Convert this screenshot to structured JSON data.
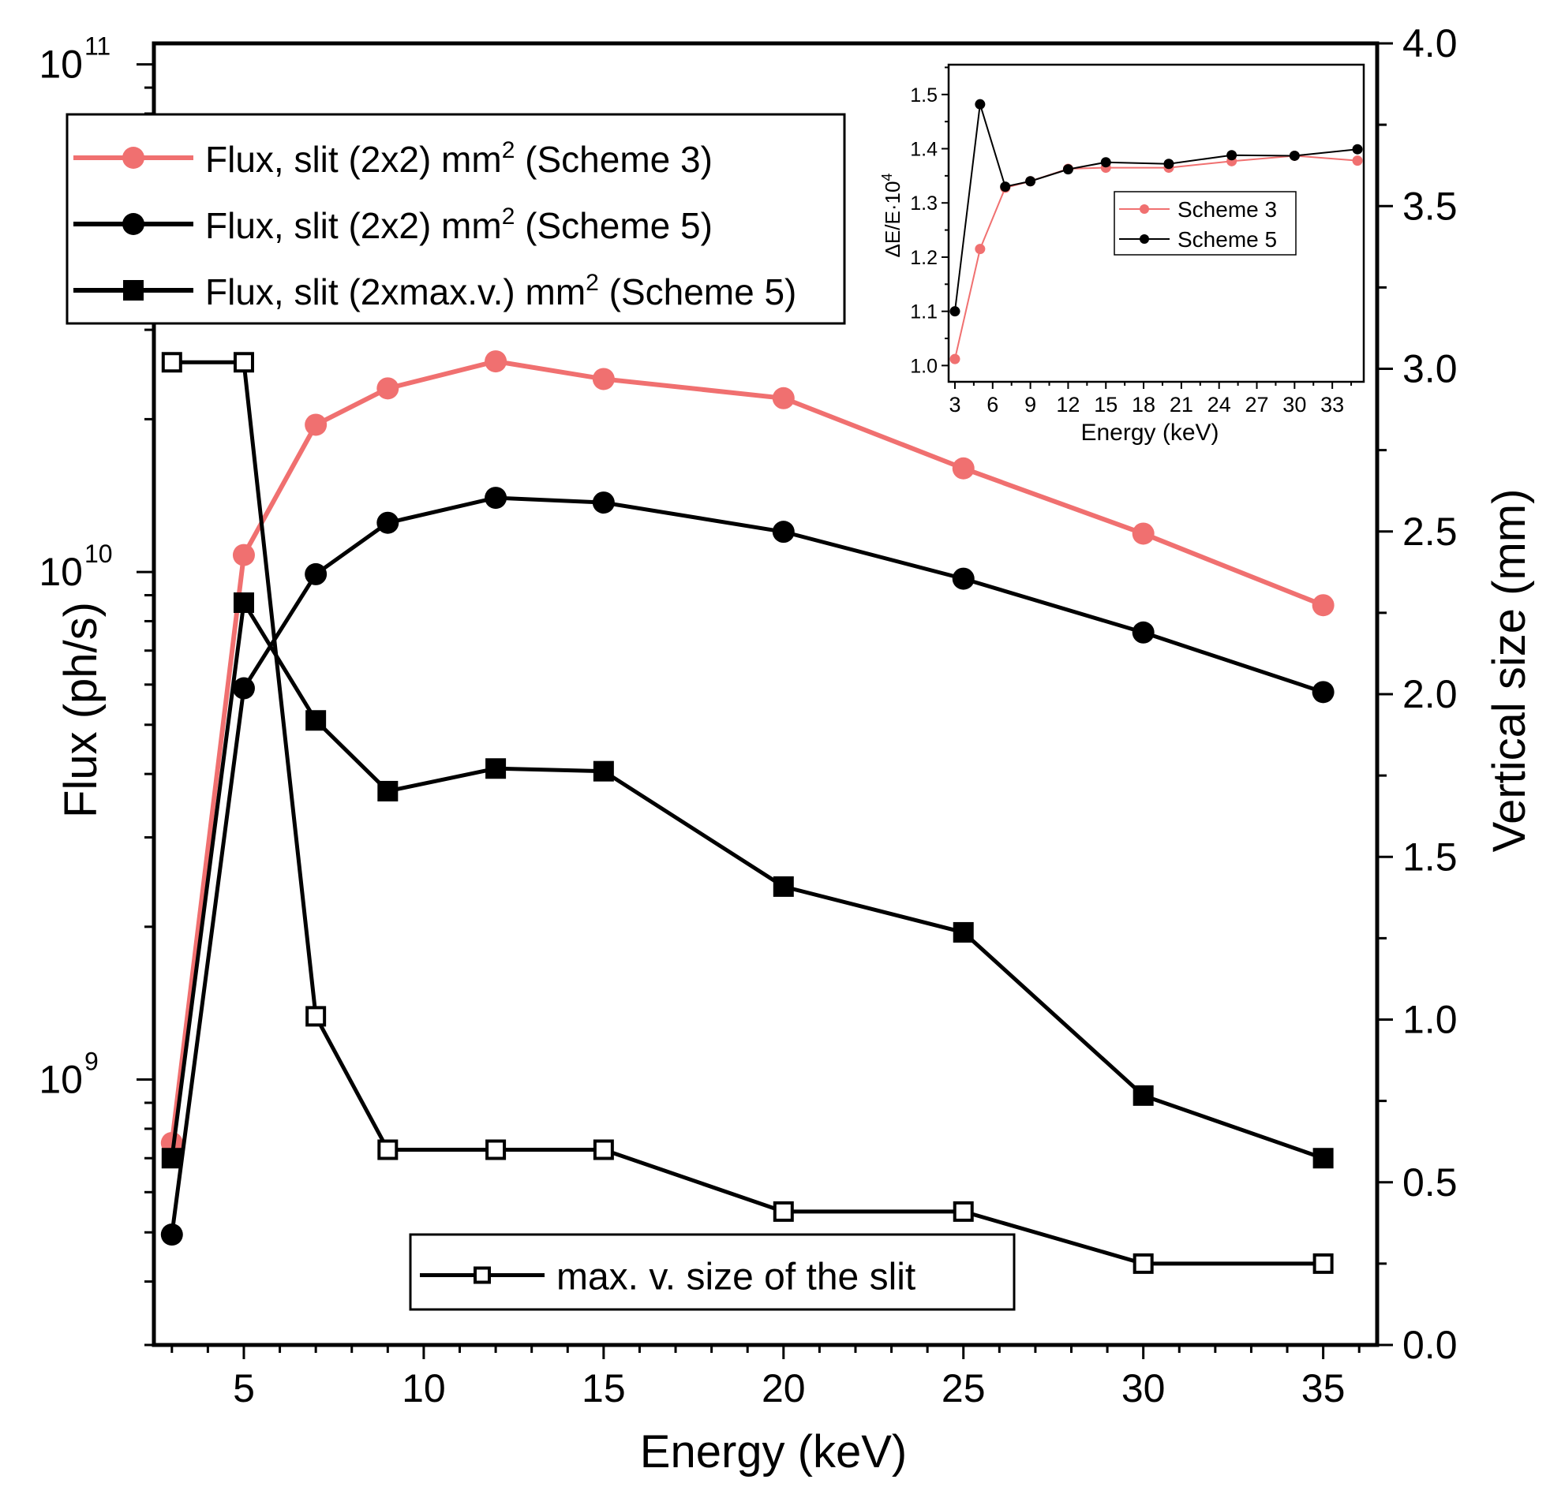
{
  "chart_data": [
    {
      "type": "line",
      "title": "",
      "xlabel": "Energy (keV)",
      "ylabel": "Flux (ph/s)",
      "y2label": "Vertical size (mm)",
      "xlim": [
        2.5,
        36.5
      ],
      "ylim": [
        300000000.0,
        110000000000.0
      ],
      "y2lim": [
        0,
        4
      ],
      "yscale": "log",
      "grid": false,
      "x_ticks": [
        "5",
        "10",
        "15",
        "20",
        "25",
        "30",
        "35"
      ],
      "y_ticks": [
        {
          "base": "10",
          "exp": "9"
        },
        {
          "base": "10",
          "exp": "10"
        },
        {
          "base": "10",
          "exp": "11"
        }
      ],
      "y2_ticks": [
        "0.0",
        "0.5",
        "1.0",
        "1.5",
        "2.0",
        "2.5",
        "3.0",
        "3.5",
        "4.0"
      ],
      "x": [
        3,
        5,
        7,
        9,
        12,
        15,
        20,
        25,
        30,
        35
      ],
      "series": [
        {
          "name": "Flux, slit (2x2) mm",
          "sup": "2",
          "name_tail": " (Scheme 3)",
          "axis": "left",
          "color": "#f07070",
          "marker": "circle-filled",
          "values": [
            750000000.0,
            10800000000.0,
            19500000000.0,
            23000000000.0,
            26000000000.0,
            24000000000.0,
            22000000000.0,
            16000000000.0,
            11900000000.0,
            8600000000.0
          ]
        },
        {
          "name": "Flux, slit (2x2) mm",
          "sup": "2",
          "name_tail": " (Scheme 5)",
          "axis": "left",
          "color": "#000000",
          "marker": "circle-filled",
          "values": [
            495000000.0,
            5900000000.0,
            9900000000.0,
            12500000000.0,
            14000000000.0,
            13700000000.0,
            12000000000.0,
            9700000000.0,
            7600000000.0,
            5800000000.0
          ]
        },
        {
          "name": "Flux, slit (2xmax.v.) mm",
          "sup": "2",
          "name_tail": " (Scheme 5)",
          "axis": "left",
          "color": "#000000",
          "marker": "square-filled",
          "values": [
            700000000.0,
            8700000000.0,
            5100000000.0,
            3700000000.0,
            4100000000.0,
            4050000000.0,
            2400000000.0,
            1950000000.0,
            930000000.0,
            700000000.0
          ]
        },
        {
          "name": "max. v. size of the slit",
          "axis": "right",
          "color": "#000000",
          "marker": "square-open",
          "values": [
            3.02,
            3.02,
            1.01,
            0.6,
            0.6,
            0.6,
            0.41,
            0.41,
            0.25,
            0.25
          ]
        }
      ],
      "legend_position": "top-left",
      "legend2_position": "bottom-center"
    },
    {
      "type": "line",
      "title": "inset",
      "xlabel": "Energy (keV)",
      "ylabel": "ΔE/E·10",
      "ylabel_sup": "4",
      "xlim": [
        2.5,
        35.5
      ],
      "ylim": [
        0.97,
        1.555
      ],
      "grid": false,
      "x_ticks": [
        "3",
        "6",
        "9",
        "12",
        "15",
        "18",
        "21",
        "24",
        "27",
        "30",
        "33"
      ],
      "y_ticks": [
        "1.0",
        "1.1",
        "1.2",
        "1.3",
        "1.4",
        "1.5"
      ],
      "x": [
        3,
        5,
        7,
        9,
        12,
        15,
        20,
        25,
        30,
        35
      ],
      "series": [
        {
          "name": "Scheme 3",
          "color": "#f07070",
          "marker": "circle-filled",
          "values": [
            1.012,
            1.215,
            1.328,
            1.34,
            1.363,
            1.365,
            1.365,
            1.377,
            1.387,
            1.378
          ]
        },
        {
          "name": "Scheme 5",
          "color": "#000000",
          "marker": "circle-filled",
          "values": [
            1.1,
            1.482,
            1.33,
            1.34,
            1.362,
            1.375,
            1.372,
            1.388,
            1.387,
            1.399
          ]
        }
      ],
      "legend_position": "center-right"
    }
  ]
}
